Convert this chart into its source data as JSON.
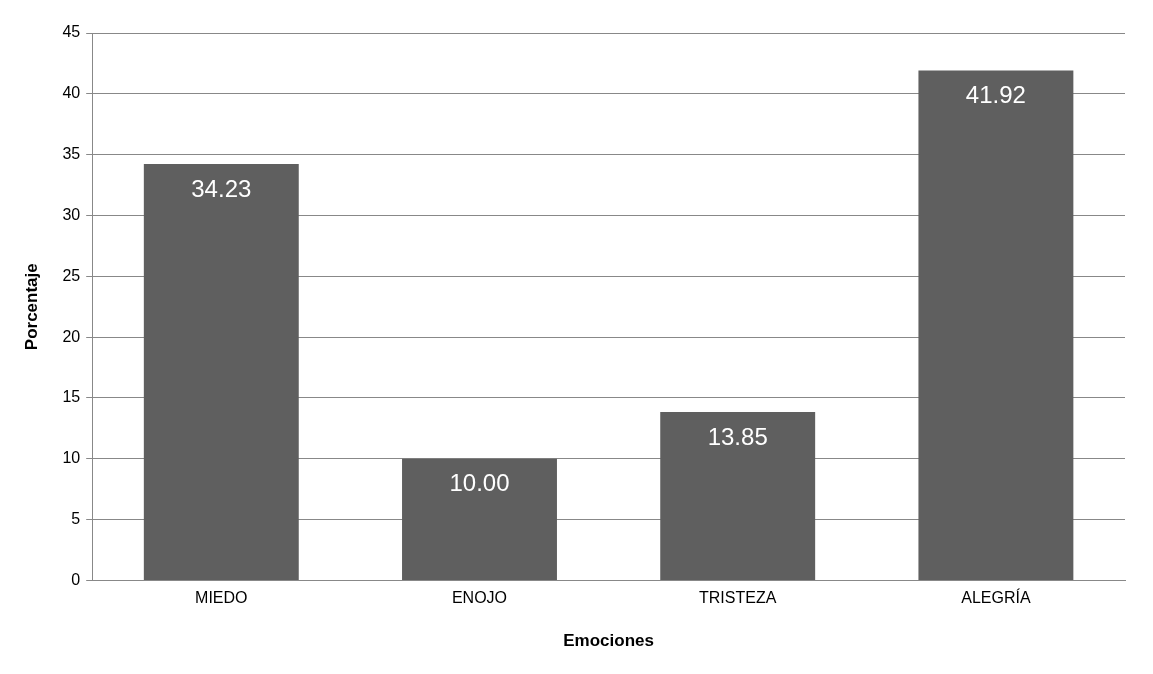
{
  "chart_data": {
    "type": "bar",
    "xlabel": "Emociones",
    "ylabel": "Porcentaje",
    "categories": [
      "MIEDO",
      "ENOJO",
      "TRISTEZA",
      "ALEGRÍA"
    ],
    "values": [
      34.23,
      10.0,
      13.85,
      41.92
    ],
    "value_labels": [
      "34.23",
      "10.00",
      "13.85",
      "41.92"
    ],
    "color": "#5f5f5f",
    "ylim": [
      0,
      45
    ],
    "yticks": [
      0,
      5,
      10,
      15,
      20,
      25,
      30,
      35,
      40,
      45
    ],
    "grid": "y",
    "legend": false
  }
}
